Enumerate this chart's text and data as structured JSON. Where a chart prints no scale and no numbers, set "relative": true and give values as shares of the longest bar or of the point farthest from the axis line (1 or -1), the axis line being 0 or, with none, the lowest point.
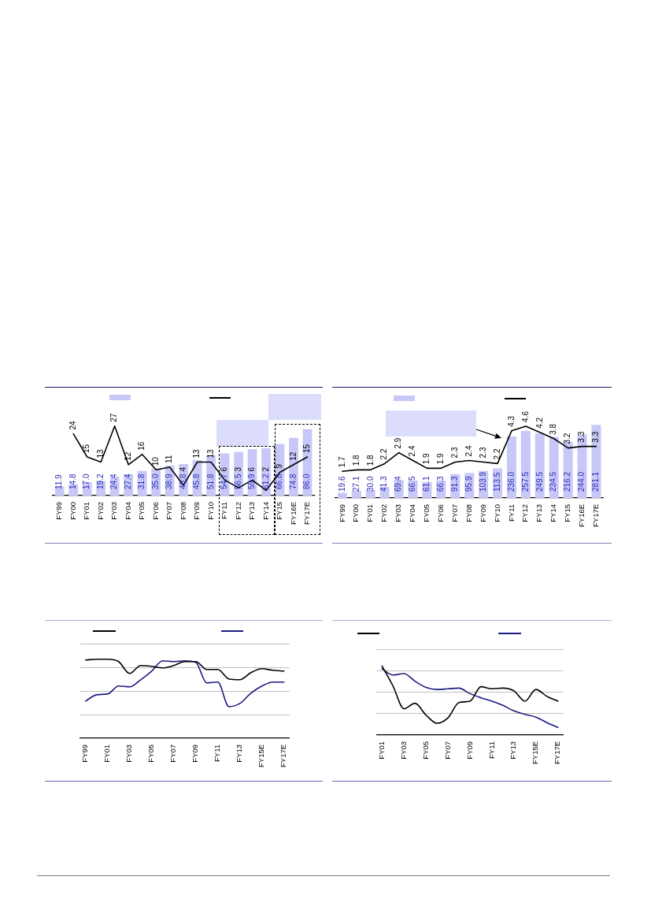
{
  "chart_data": [
    {
      "type": "bar",
      "categories": [
        "FY99",
        "FY00",
        "FY01",
        "FY02",
        "FY03",
        "FY04",
        "FY05",
        "FY06",
        "FY07",
        "FY08",
        "FY09",
        "FY10",
        "FY11",
        "FY12",
        "FY13",
        "FY14",
        "FY15",
        "FY16E",
        "FY17E"
      ],
      "series": [
        {
          "type": "bar",
          "color": "#c8c8f8",
          "values": [
            11.9,
            14.8,
            17.0,
            19.2,
            24.4,
            27.4,
            31.8,
            35.0,
            38.9,
            40.8,
            45.8,
            51.8,
            54.7,
            56.5,
            59.9,
            61.2,
            66.8,
            74.8,
            86.0
          ],
          "value_labels": [
            "11.9",
            "14.8",
            "17.0",
            "19.2",
            "24.4",
            "27.4",
            "31.8",
            "35.0",
            "38.9",
            "40.8",
            "45.8",
            "51.8",
            "54.7",
            "56.5",
            "59.9",
            "61.2",
            "66.8",
            "74.8",
            "86.0"
          ]
        },
        {
          "type": "line",
          "color": "#000000",
          "axis": "y2",
          "values": [
            null,
            24,
            15,
            13,
            27,
            12,
            16,
            10,
            11,
            4,
            13,
            13,
            6,
            3,
            6,
            2,
            9,
            12,
            15
          ],
          "value_labels": [
            null,
            "24",
            "15",
            "13",
            "27",
            "12",
            "16",
            "10",
            "11",
            "4",
            "13",
            "13",
            "6",
            "3",
            "6",
            "2",
            "9",
            "12",
            "15"
          ]
        }
      ],
      "tick_labels": "x"
    },
    {
      "type": "bar",
      "categories": [
        "FY99",
        "FY00",
        "FY01",
        "FY02",
        "FY03",
        "FY04",
        "FY05",
        "FY06",
        "FY07",
        "FY08",
        "FY09",
        "FY10",
        "FY11",
        "FY12",
        "FY13",
        "FY14",
        "FY15",
        "FY16E",
        "FY17E"
      ],
      "series": [
        {
          "type": "bar",
          "color": "#c8c8f8",
          "values": [
            19.6,
            27.1,
            30.0,
            41.3,
            69.4,
            66.5,
            61.1,
            66.3,
            91.3,
            95.9,
            103.9,
            113.5,
            236.0,
            257.5,
            249.5,
            234.5,
            216.2,
            244.0,
            281.1
          ],
          "value_labels": [
            "19.6",
            "27.1",
            "30.0",
            "41.3",
            "69.4",
            "66.5",
            "61.1",
            "66.3",
            "91.3",
            "95.9",
            "103.9",
            "113.5",
            "236.0",
            "257.5",
            "249.5",
            "234.5",
            "216.2",
            "244.0",
            "281.1"
          ]
        },
        {
          "type": "line",
          "color": "#000000",
          "axis": "y2",
          "values": [
            1.7,
            1.8,
            1.8,
            2.2,
            2.9,
            2.4,
            1.9,
            1.9,
            2.3,
            2.4,
            2.3,
            2.2,
            4.3,
            4.6,
            4.2,
            3.8,
            3.2,
            3.3,
            3.3
          ],
          "value_labels": [
            "1.7",
            "1.8",
            "1.8",
            "2.2",
            "2.9",
            "2.4",
            "1.9",
            "1.9",
            "2.3",
            "2.4",
            "2.3",
            "2.2",
            "4.3",
            "4.6",
            "4.2",
            "3.8",
            "3.2",
            "3.3",
            "3.3"
          ]
        }
      ],
      "tick_labels": "x"
    },
    {
      "type": "line",
      "relative": true,
      "categories": [
        "FY99",
        null,
        "FY01",
        null,
        "FY03",
        null,
        "FY05",
        null,
        "FY07",
        null,
        "FY09",
        null,
        "FY11",
        null,
        "FY13",
        null,
        "FY15E",
        null,
        "FY17E"
      ],
      "series": [
        {
          "color": "#000000",
          "values": [
            0.99,
            1.0,
            1.0,
            0.97,
            0.82,
            0.92,
            0.91,
            0.89,
            0.92,
            0.97,
            0.97,
            0.87,
            0.87,
            0.75,
            0.74,
            0.83,
            0.88,
            0.86,
            0.85
          ]
        },
        {
          "color": "#1c1a80",
          "values": [
            0.47,
            0.55,
            0.56,
            0.66,
            0.65,
            0.74,
            0.85,
            0.98,
            0.97,
            0.98,
            0.96,
            0.7,
            0.71,
            0.4,
            0.44,
            0.57,
            0.66,
            0.71,
            0.71
          ]
        }
      ],
      "grid": "y",
      "tick_labels": "x"
    },
    {
      "type": "line",
      "relative": true,
      "categories": [
        "FY01",
        null,
        "FY03",
        null,
        "FY05",
        null,
        "FY07",
        null,
        "FY09",
        null,
        "FY11",
        null,
        "FY13",
        null,
        "FY15E",
        null,
        "FY17E"
      ],
      "series": [
        {
          "color": "#000000",
          "values": [
            1.0,
            0.71,
            0.38,
            0.46,
            0.29,
            0.17,
            0.25,
            0.47,
            0.49,
            0.7,
            0.67,
            0.68,
            0.64,
            0.49,
            0.66,
            0.56,
            0.49
          ]
        },
        {
          "color": "#1c1a80",
          "values": [
            0.96,
            0.87,
            0.89,
            0.78,
            0.69,
            0.66,
            0.67,
            0.68,
            0.6,
            0.54,
            0.49,
            0.43,
            0.35,
            0.3,
            0.26,
            0.18,
            0.11
          ]
        }
      ],
      "grid": "y",
      "tick_labels": "x"
    }
  ]
}
